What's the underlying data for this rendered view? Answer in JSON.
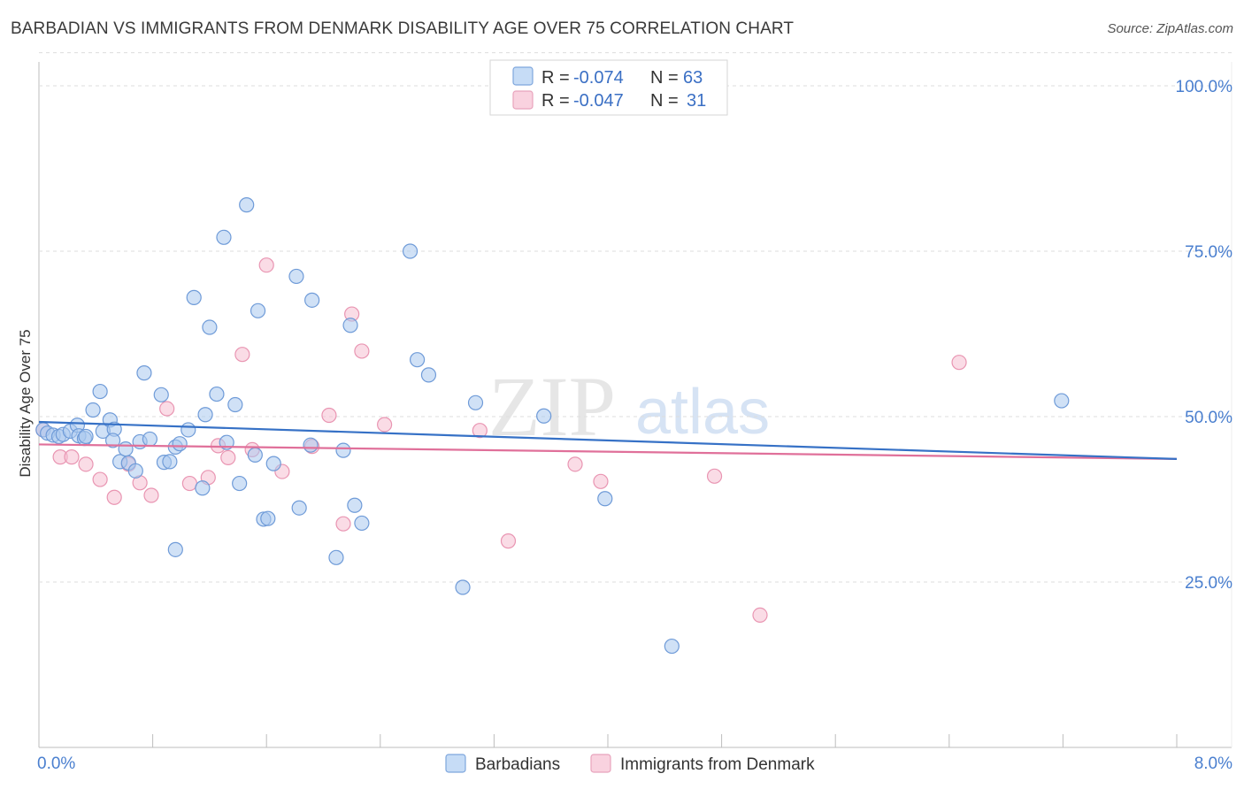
{
  "header": {
    "title": "BARBADIAN VS IMMIGRANTS FROM DENMARK DISABILITY AGE OVER 75 CORRELATION CHART",
    "source": "Source: ZipAtlas.com"
  },
  "watermark": {
    "part1": "ZIP",
    "part2": "atlas"
  },
  "legend": {
    "rows": [
      {
        "r_label": "R =",
        "r_value": "-0.074",
        "n_label": "N =",
        "n_value": "63"
      },
      {
        "r_label": "R =",
        "r_value": "-0.047",
        "n_label": "N =",
        "n_value": "31"
      }
    ]
  },
  "colors": {
    "series1_fill": "#a9c8ef",
    "series1_stroke": "#6f9bd8",
    "series1_line": "#3671c6",
    "series2_fill": "#f6bfd1",
    "series2_stroke": "#e995b2",
    "series2_line": "#e0709a",
    "tick_label": "#4a7fcf",
    "grid": "#dddddd"
  },
  "chart_data": {
    "type": "scatter",
    "title": "BARBADIAN VS IMMIGRANTS FROM DENMARK DISABILITY AGE OVER 75 CORRELATION CHART",
    "xlabel": "",
    "ylabel": "Disability Age Over 75",
    "xlim": [
      0,
      8
    ],
    "ylim": [
      0,
      105
    ],
    "x_tick_labels": [
      "0.0%",
      "8.0%"
    ],
    "y_ticks": [
      25,
      50,
      75,
      100
    ],
    "y_tick_labels": [
      "25.0%",
      "50.0%",
      "75.0%",
      "100.0%"
    ],
    "series": [
      {
        "name": "Barbadians",
        "r": -0.074,
        "n": 63,
        "trend": {
          "x": [
            0,
            8
          ],
          "y": [
            49.2,
            43.6
          ]
        },
        "points": [
          [
            0.03,
            48.0
          ],
          [
            0.06,
            47.5
          ],
          [
            0.1,
            47.2
          ],
          [
            0.14,
            47.0
          ],
          [
            0.17,
            47.3
          ],
          [
            0.22,
            47.8
          ],
          [
            0.27,
            48.7
          ],
          [
            0.28,
            47.1
          ],
          [
            0.32,
            46.7
          ],
          [
            0.33,
            47.0
          ],
          [
            0.38,
            51.0
          ],
          [
            0.43,
            53.8
          ],
          [
            0.45,
            47.8
          ],
          [
            0.5,
            49.5
          ],
          [
            0.53,
            48.1
          ],
          [
            0.57,
            43.2
          ],
          [
            0.61,
            45.1
          ],
          [
            0.63,
            43.0
          ],
          [
            0.68,
            41.8
          ],
          [
            0.71,
            46.2
          ],
          [
            0.74,
            56.6
          ],
          [
            0.78,
            46.6
          ],
          [
            0.86,
            53.3
          ],
          [
            0.88,
            43.1
          ],
          [
            0.92,
            43.2
          ],
          [
            0.96,
            45.4
          ],
          [
            0.99,
            45.9
          ],
          [
            1.05,
            48.0
          ],
          [
            1.09,
            68.0
          ],
          [
            1.15,
            39.2
          ],
          [
            1.17,
            50.3
          ],
          [
            1.2,
            63.5
          ],
          [
            1.25,
            53.4
          ],
          [
            1.3,
            77.1
          ],
          [
            1.32,
            46.1
          ],
          [
            1.38,
            51.8
          ],
          [
            1.41,
            39.9
          ],
          [
            1.46,
            82.0
          ],
          [
            1.52,
            44.2
          ],
          [
            1.54,
            66.0
          ],
          [
            1.58,
            34.5
          ],
          [
            1.61,
            34.6
          ],
          [
            1.65,
            42.9
          ],
          [
            1.81,
            71.2
          ],
          [
            1.83,
            36.2
          ],
          [
            1.91,
            45.7
          ],
          [
            1.92,
            67.6
          ],
          [
            2.09,
            28.7
          ],
          [
            2.14,
            44.9
          ],
          [
            2.19,
            63.8
          ],
          [
            2.22,
            36.6
          ],
          [
            2.27,
            33.9
          ],
          [
            2.61,
            75.0
          ],
          [
            2.66,
            58.6
          ],
          [
            2.74,
            56.3
          ],
          [
            2.98,
            24.2
          ],
          [
            3.07,
            52.1
          ],
          [
            3.55,
            50.1
          ],
          [
            3.98,
            37.6
          ],
          [
            4.45,
            15.3
          ],
          [
            7.19,
            52.4
          ],
          [
            0.96,
            29.9
          ],
          [
            0.52,
            46.4
          ]
        ]
      },
      {
        "name": "Immigrants from Denmark",
        "r": -0.047,
        "n": 31,
        "trend": {
          "x": [
            0,
            8
          ],
          "y": [
            45.8,
            43.6
          ]
        },
        "points": [
          [
            0.03,
            48.0
          ],
          [
            0.15,
            43.9
          ],
          [
            0.23,
            43.9
          ],
          [
            0.33,
            42.8
          ],
          [
            0.43,
            40.5
          ],
          [
            0.53,
            37.8
          ],
          [
            0.63,
            42.8
          ],
          [
            0.71,
            40.0
          ],
          [
            0.79,
            38.1
          ],
          [
            0.9,
            51.2
          ],
          [
            1.06,
            39.9
          ],
          [
            1.19,
            40.8
          ],
          [
            1.26,
            45.6
          ],
          [
            1.33,
            43.8
          ],
          [
            1.43,
            59.4
          ],
          [
            1.5,
            45.0
          ],
          [
            1.6,
            72.9
          ],
          [
            1.71,
            41.7
          ],
          [
            1.92,
            45.5
          ],
          [
            2.04,
            50.2
          ],
          [
            2.14,
            33.8
          ],
          [
            2.2,
            65.5
          ],
          [
            2.27,
            59.9
          ],
          [
            2.43,
            48.8
          ],
          [
            3.1,
            47.9
          ],
          [
            3.3,
            31.2
          ],
          [
            3.77,
            42.8
          ],
          [
            3.95,
            40.2
          ],
          [
            4.75,
            41.0
          ],
          [
            5.07,
            20.0
          ],
          [
            6.47,
            58.2
          ]
        ]
      }
    ]
  }
}
